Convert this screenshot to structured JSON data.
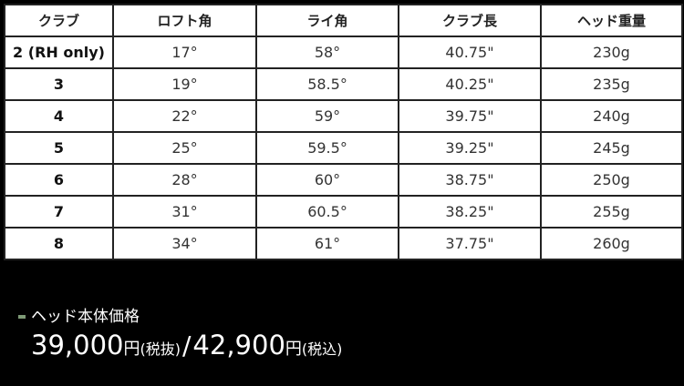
{
  "table": {
    "headers": [
      "クラブ",
      "ロフト角",
      "ライ角",
      "クラブ長",
      "ヘッド重量"
    ],
    "rows": [
      [
        "2 (RH only)",
        "17°",
        "58°",
        "40.75\"",
        "230g"
      ],
      [
        "3",
        "19°",
        "58.5°",
        "40.25\"",
        "235g"
      ],
      [
        "4",
        "22°",
        "59°",
        "39.75\"",
        "240g"
      ],
      [
        "5",
        "25°",
        "59.5°",
        "39.25\"",
        "245g"
      ],
      [
        "6",
        "28°",
        "60°",
        "38.75\"",
        "250g"
      ],
      [
        "7",
        "31°",
        "60.5°",
        "38.25\"",
        "255g"
      ],
      [
        "8",
        "34°",
        "61°",
        "37.75\"",
        "260g"
      ]
    ]
  },
  "price": {
    "label": "ヘッド本体価格",
    "bullet_color": "#7e9a76",
    "excl_amount": "39,000",
    "excl_yen": "円",
    "excl_note": "(税抜)",
    "separator": "/",
    "incl_amount": "42,900",
    "incl_yen": "円",
    "incl_note": "(税込)"
  }
}
